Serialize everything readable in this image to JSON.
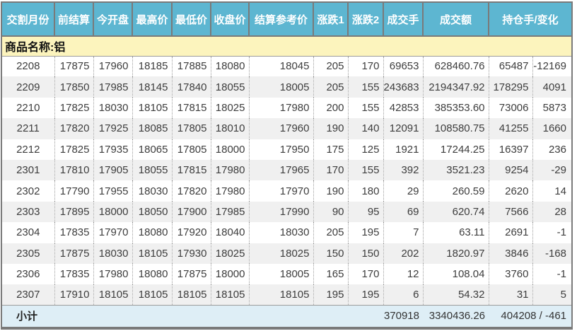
{
  "colors": {
    "header_bg": "#5DB6D1",
    "header_text": "#FFFFFF",
    "product_bg": "#FCF4BD",
    "alt_row_bg": "#F0F0F0",
    "subtotal_bg": "#DEEEF6",
    "border_dark": "#7A7A7A",
    "line_gray": "#9C9C9C",
    "text_color": "#3D3D3D"
  },
  "table": {
    "headers": [
      "交割月份",
      "前结算",
      "今开盘",
      "最高价",
      "最低价",
      "收盘价",
      "结算参考价",
      "涨跌1",
      "涨跌2",
      "成交手",
      "成交额",
      "持仓手/变化"
    ],
    "column_keys": [
      "month",
      "prev-settlement",
      "open",
      "high",
      "low",
      "close",
      "settlement-ref",
      "change1",
      "change2",
      "volume",
      "turnover",
      "open-interest",
      "oi-change"
    ],
    "product_label": "商品名称:铝",
    "rows": [
      [
        "2208",
        "17875",
        "17960",
        "18185",
        "17885",
        "18080",
        "18045",
        "205",
        "170",
        "69653",
        "628460.76",
        "65487",
        "-12169"
      ],
      [
        "2209",
        "17850",
        "17985",
        "18145",
        "17840",
        "18055",
        "18005",
        "205",
        "155",
        "243683",
        "2194347.92",
        "178295",
        "4091"
      ],
      [
        "2210",
        "17825",
        "18030",
        "18105",
        "17815",
        "18025",
        "17980",
        "200",
        "155",
        "42853",
        "385353.60",
        "73006",
        "5873"
      ],
      [
        "2211",
        "17820",
        "17925",
        "18085",
        "17805",
        "18010",
        "17960",
        "190",
        "140",
        "12091",
        "108580.75",
        "41255",
        "1660"
      ],
      [
        "2212",
        "17825",
        "17935",
        "18065",
        "17805",
        "18000",
        "17950",
        "175",
        "125",
        "1921",
        "17244.25",
        "16397",
        "236"
      ],
      [
        "2301",
        "17810",
        "17905",
        "18055",
        "17815",
        "17980",
        "17965",
        "170",
        "155",
        "392",
        "3521.23",
        "9254",
        "-29"
      ],
      [
        "2302",
        "17790",
        "17955",
        "18030",
        "17820",
        "17980",
        "17970",
        "190",
        "180",
        "29",
        "260.59",
        "2620",
        "14"
      ],
      [
        "2303",
        "17895",
        "18000",
        "18050",
        "17900",
        "17985",
        "17990",
        "90",
        "95",
        "69",
        "620.74",
        "7566",
        "28"
      ],
      [
        "2304",
        "17835",
        "17970",
        "18080",
        "17920",
        "18040",
        "18030",
        "205",
        "195",
        "7",
        "63.11",
        "2691",
        "-1"
      ],
      [
        "2305",
        "17875",
        "18030",
        "18105",
        "17930",
        "18025",
        "18025",
        "150",
        "150",
        "202",
        "1820.97",
        "3846",
        "-168"
      ],
      [
        "2306",
        "17835",
        "17980",
        "18080",
        "17875",
        "18000",
        "18005",
        "165",
        "170",
        "12",
        "108.04",
        "3760",
        "-1"
      ],
      [
        "2307",
        "17910",
        "18105",
        "18105",
        "18105",
        "18105",
        "18105",
        "195",
        "195",
        "6",
        "54.32",
        "31",
        "5"
      ]
    ],
    "subtotal": {
      "label": "小计",
      "volume": "370918",
      "turnover": "3340436.26",
      "open_interest_change": "404208 / -461"
    }
  }
}
